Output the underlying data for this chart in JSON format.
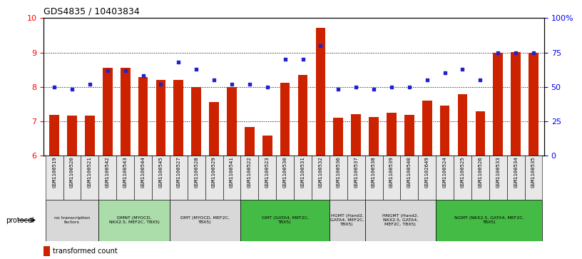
{
  "title": "GDS4835 / 10403834",
  "samples": [
    "GSM1100519",
    "GSM1100520",
    "GSM1100521",
    "GSM1100542",
    "GSM1100543",
    "GSM1100544",
    "GSM1100545",
    "GSM1100527",
    "GSM1100528",
    "GSM1100529",
    "GSM1100541",
    "GSM1100522",
    "GSM1100523",
    "GSM1100530",
    "GSM1100531",
    "GSM1100532",
    "GSM1100536",
    "GSM1100537",
    "GSM1100538",
    "GSM1100539",
    "GSM1100540",
    "GSM1102649",
    "GSM1100524",
    "GSM1100525",
    "GSM1100526",
    "GSM1100533",
    "GSM1100534",
    "GSM1100535"
  ],
  "bar_values": [
    7.18,
    7.15,
    7.17,
    8.55,
    8.55,
    8.28,
    8.2,
    8.2,
    8.0,
    7.55,
    8.0,
    6.82,
    6.58,
    8.12,
    8.35,
    9.72,
    7.1,
    7.2,
    7.12,
    7.25,
    7.18,
    7.6,
    7.45,
    7.78,
    7.28,
    9.0,
    9.02,
    8.98
  ],
  "dot_values_pct": [
    50,
    48,
    52,
    62,
    62,
    58,
    52,
    68,
    63,
    55,
    52,
    52,
    50,
    70,
    70,
    80,
    48,
    50,
    48,
    50,
    50,
    55,
    60,
    63,
    55,
    75,
    75,
    75
  ],
  "ylim": [
    6,
    10
  ],
  "bar_color": "#cc2200",
  "dot_color": "#2222cc",
  "protocols": [
    {
      "label": "no transcription\nfactors",
      "start": 0,
      "end": 3,
      "color": "#d8d8d8"
    },
    {
      "label": "DMNT (MYOCD,\nNKX2.5, MEF2C, TBX5)",
      "start": 3,
      "end": 7,
      "color": "#aaddaa"
    },
    {
      "label": "DMT (MYOCD, MEF2C,\nTBX5)",
      "start": 7,
      "end": 11,
      "color": "#d8d8d8"
    },
    {
      "label": "GMT (GATA4, MEF2C,\nTBX5)",
      "start": 11,
      "end": 16,
      "color": "#44bb44"
    },
    {
      "label": "HGMT (Hand2,\nGATA4, MEF2C,\nTBX5)",
      "start": 16,
      "end": 18,
      "color": "#d8d8d8"
    },
    {
      "label": "HNGMT (Hand2,\nNKX2.5, GATA4,\nMEF2C, TBX5)",
      "start": 18,
      "end": 22,
      "color": "#d8d8d8"
    },
    {
      "label": "NGMT (NKX2.5, GATA4, MEF2C,\nTBX5)",
      "start": 22,
      "end": 28,
      "color": "#44bb44"
    }
  ]
}
